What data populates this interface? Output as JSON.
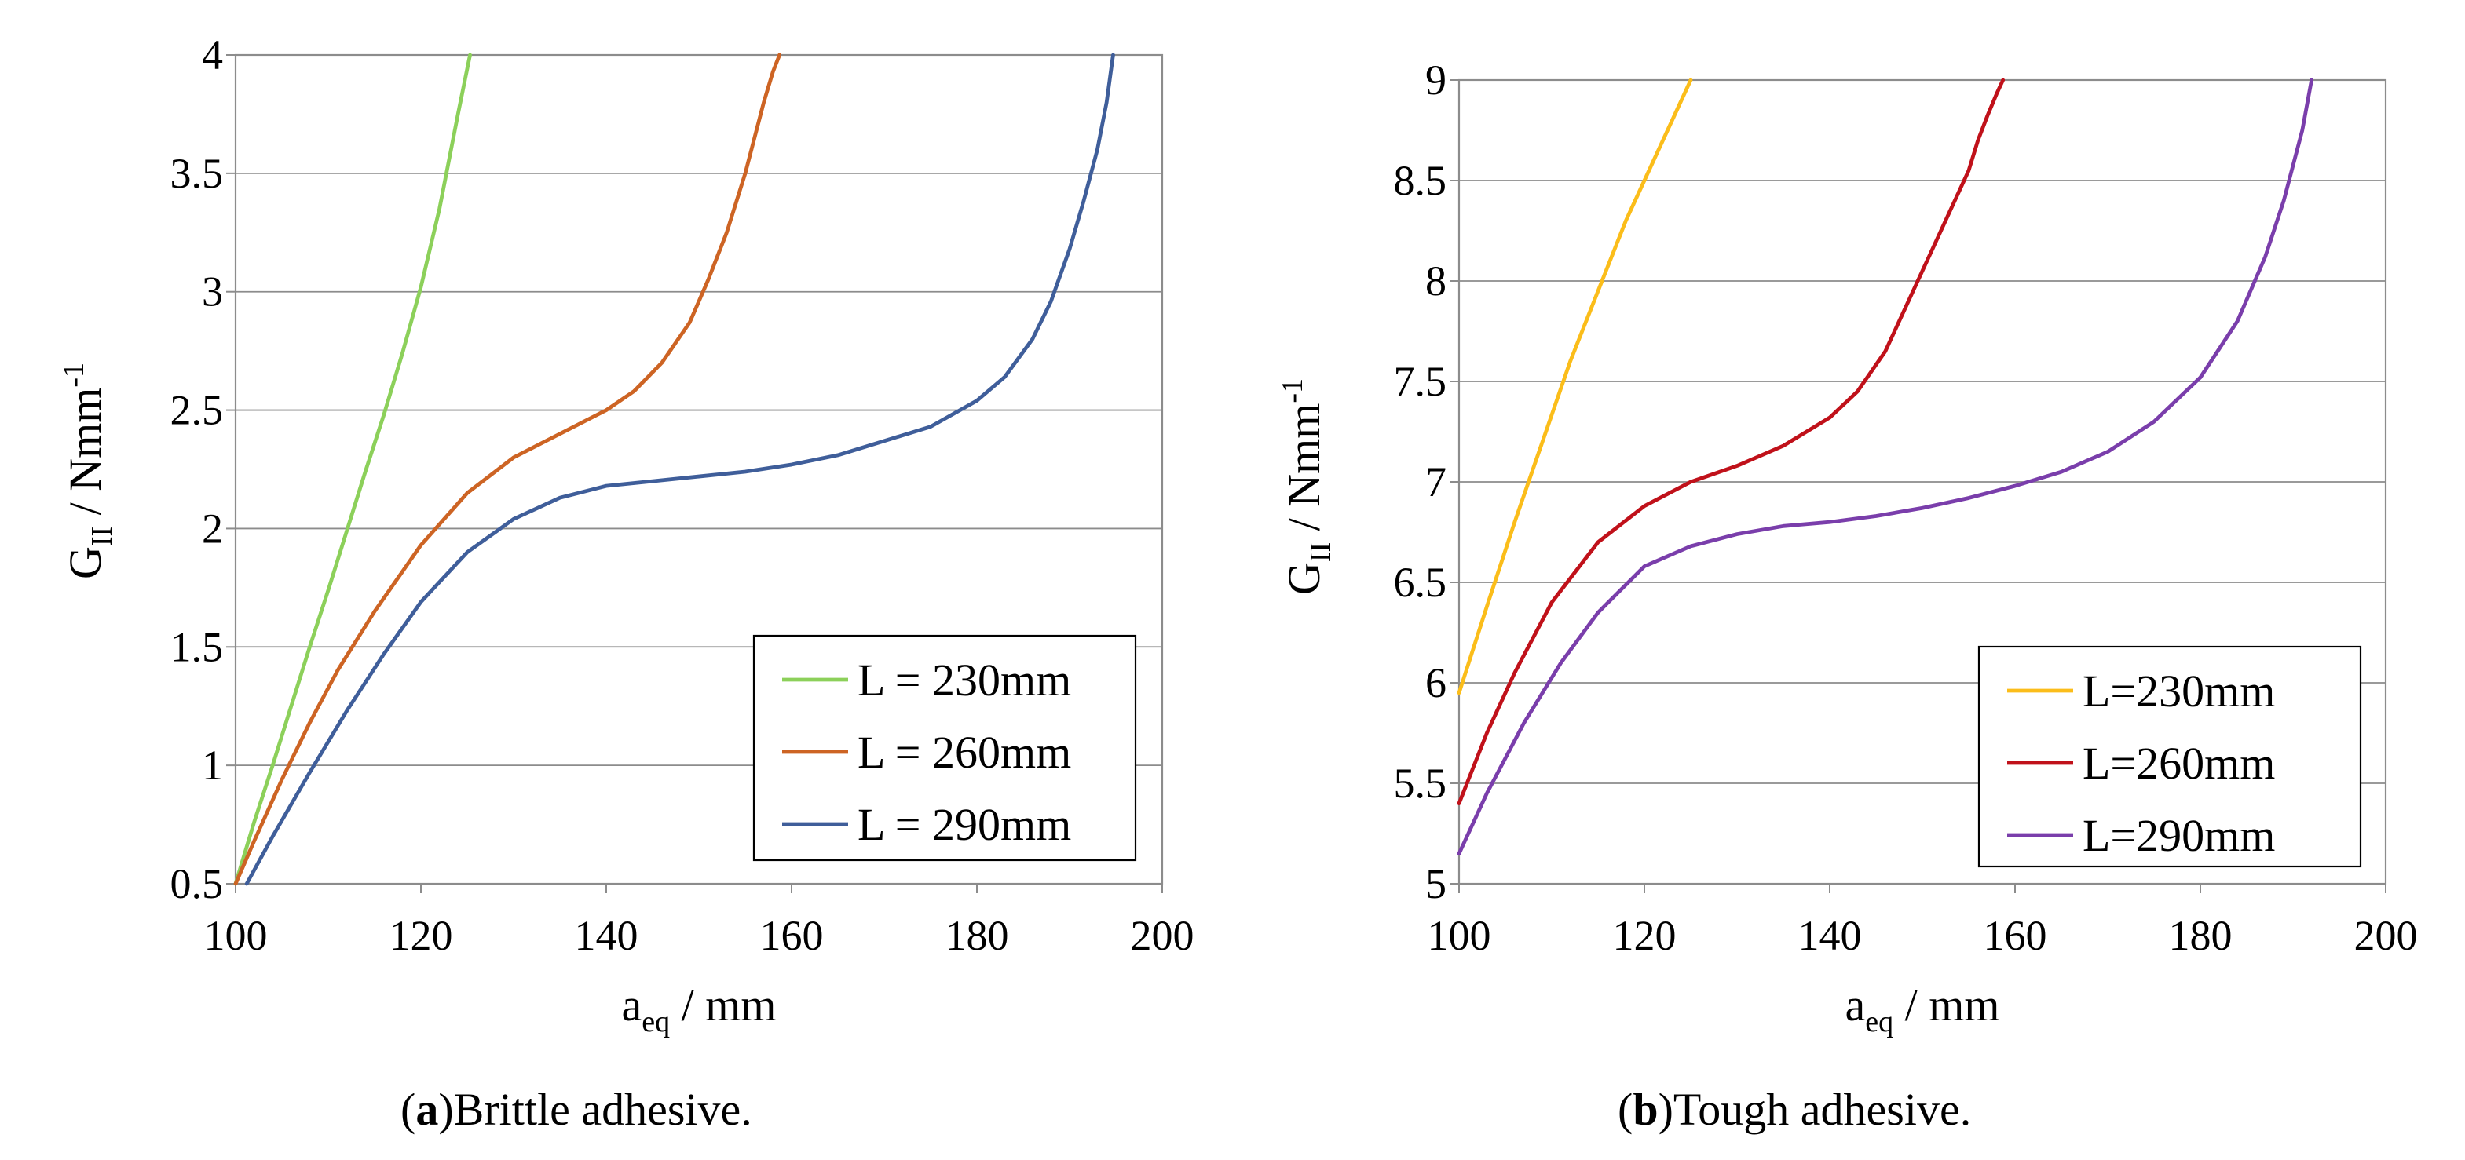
{
  "colors": {
    "green": "#8cd05a",
    "orange": "#cd6424",
    "blue": "#3f5e9a",
    "yellow": "#fbbd1a",
    "red": "#c0111a",
    "purple": "#7a3eab",
    "grid": "#8c8c8c"
  },
  "captions": {
    "a_letter": "a",
    "a_text": "Brittle adhesive.",
    "b_letter": "b",
    "b_text": "Tough adhesive."
  },
  "chart_data": [
    {
      "type": "line",
      "id": "a",
      "title": "",
      "xlabel": "a_eq / mm",
      "xlabel_main": "a",
      "xlabel_sub": "eq",
      "xlabel_rest": " / mm",
      "ylabel": "G_II / Nmm^-1",
      "ylabel_main": "G",
      "ylabel_sub": "II",
      "ylabel_rest": "  / Nmm",
      "ylabel_sup": "-1",
      "xlim": [
        100,
        200
      ],
      "ylim": [
        0.5,
        4
      ],
      "xticks": [
        100,
        120,
        140,
        160,
        180,
        200
      ],
      "xtick_labels": [
        "100",
        "120",
        "140",
        "160",
        "180",
        "200"
      ],
      "yticks": [
        0.5,
        1,
        1.5,
        2,
        2.5,
        3,
        3.5,
        4
      ],
      "ytick_labels": [
        "0.5",
        "1",
        "1.5",
        "2",
        "2.5",
        "3",
        "3.5",
        "4"
      ],
      "grid": "horizontal",
      "legend_position": "bottom-right",
      "series": [
        {
          "name": "L = 230mm",
          "color": "#8cd05a",
          "x": [
            100,
            102,
            104,
            106,
            108,
            110,
            112,
            114,
            116,
            118,
            120,
            122,
            123,
            124,
            125.3
          ],
          "y": [
            0.5,
            0.76,
            1.0,
            1.25,
            1.5,
            1.74,
            1.99,
            2.24,
            2.48,
            2.74,
            3.02,
            3.35,
            3.55,
            3.75,
            4.0
          ]
        },
        {
          "name": "L = 260mm",
          "color": "#cd6424",
          "x": [
            100,
            102,
            105,
            108,
            111,
            115,
            120,
            125,
            130,
            135,
            140,
            143,
            146,
            149,
            151,
            153,
            155,
            156,
            157,
            158,
            158.7
          ],
          "y": [
            0.5,
            0.68,
            0.94,
            1.18,
            1.4,
            1.65,
            1.93,
            2.15,
            2.3,
            2.4,
            2.5,
            2.58,
            2.7,
            2.87,
            3.05,
            3.25,
            3.5,
            3.65,
            3.8,
            3.93,
            4.0
          ]
        },
        {
          "name": "L = 290mm",
          "color": "#3f5e9a",
          "x": [
            101.2,
            104,
            108,
            112,
            116,
            120,
            125,
            130,
            135,
            140,
            145,
            150,
            155,
            160,
            165,
            170,
            175,
            180,
            183,
            186,
            188,
            190,
            191.5,
            193,
            194,
            194.7
          ],
          "y": [
            0.5,
            0.7,
            0.97,
            1.23,
            1.47,
            1.69,
            1.9,
            2.04,
            2.13,
            2.18,
            2.2,
            2.22,
            2.24,
            2.27,
            2.31,
            2.37,
            2.43,
            2.54,
            2.64,
            2.8,
            2.96,
            3.18,
            3.38,
            3.6,
            3.8,
            4.0
          ]
        }
      ]
    },
    {
      "type": "line",
      "id": "b",
      "title": "",
      "xlabel": "a_eq / mm",
      "xlabel_main": "a",
      "xlabel_sub": "eq",
      "xlabel_rest": " / mm",
      "ylabel": "G_II / Nmm^-1",
      "ylabel_main": "G",
      "ylabel_sub": "II",
      "ylabel_rest": "  / Nmm",
      "ylabel_sup": "-1",
      "xlim": [
        100,
        200
      ],
      "ylim": [
        5,
        9
      ],
      "xticks": [
        100,
        120,
        140,
        160,
        180,
        200
      ],
      "xtick_labels": [
        "100",
        "120",
        "140",
        "160",
        "180",
        "200"
      ],
      "yticks": [
        5,
        5.5,
        6,
        6.5,
        7,
        7.5,
        8,
        8.5,
        9
      ],
      "ytick_labels": [
        "5",
        "5.5",
        "6",
        "6.5",
        "7",
        "7.5",
        "8",
        "8.5",
        "9"
      ],
      "grid": "horizontal",
      "legend_position": "bottom-right",
      "series": [
        {
          "name": "L=230mm",
          "color": "#fbbd1a",
          "x": [
            100,
            103,
            106,
            109,
            112,
            115,
            118,
            121,
            123,
            124,
            125
          ],
          "y": [
            5.95,
            6.38,
            6.8,
            7.2,
            7.6,
            7.95,
            8.3,
            8.6,
            8.8,
            8.9,
            9.0
          ]
        },
        {
          "name": "L=260mm",
          "color": "#c0111a",
          "x": [
            100,
            103,
            106,
            110,
            115,
            120,
            125,
            130,
            135,
            140,
            143,
            146,
            149,
            151,
            153,
            155,
            156,
            157,
            158,
            158.7
          ],
          "y": [
            5.4,
            5.75,
            6.05,
            6.4,
            6.7,
            6.88,
            7.0,
            7.08,
            7.18,
            7.32,
            7.45,
            7.65,
            7.95,
            8.15,
            8.35,
            8.55,
            8.7,
            8.82,
            8.93,
            9.0
          ]
        },
        {
          "name": "L=290mm",
          "color": "#7a3eab",
          "x": [
            100,
            103,
            107,
            111,
            115,
            120,
            125,
            130,
            135,
            140,
            145,
            150,
            155,
            160,
            165,
            170,
            175,
            180,
            184,
            187,
            189,
            191,
            192
          ],
          "y": [
            5.15,
            5.45,
            5.8,
            6.1,
            6.35,
            6.58,
            6.68,
            6.74,
            6.78,
            6.8,
            6.83,
            6.87,
            6.92,
            6.98,
            7.05,
            7.15,
            7.3,
            7.52,
            7.8,
            8.12,
            8.4,
            8.75,
            9.0
          ]
        }
      ]
    }
  ]
}
